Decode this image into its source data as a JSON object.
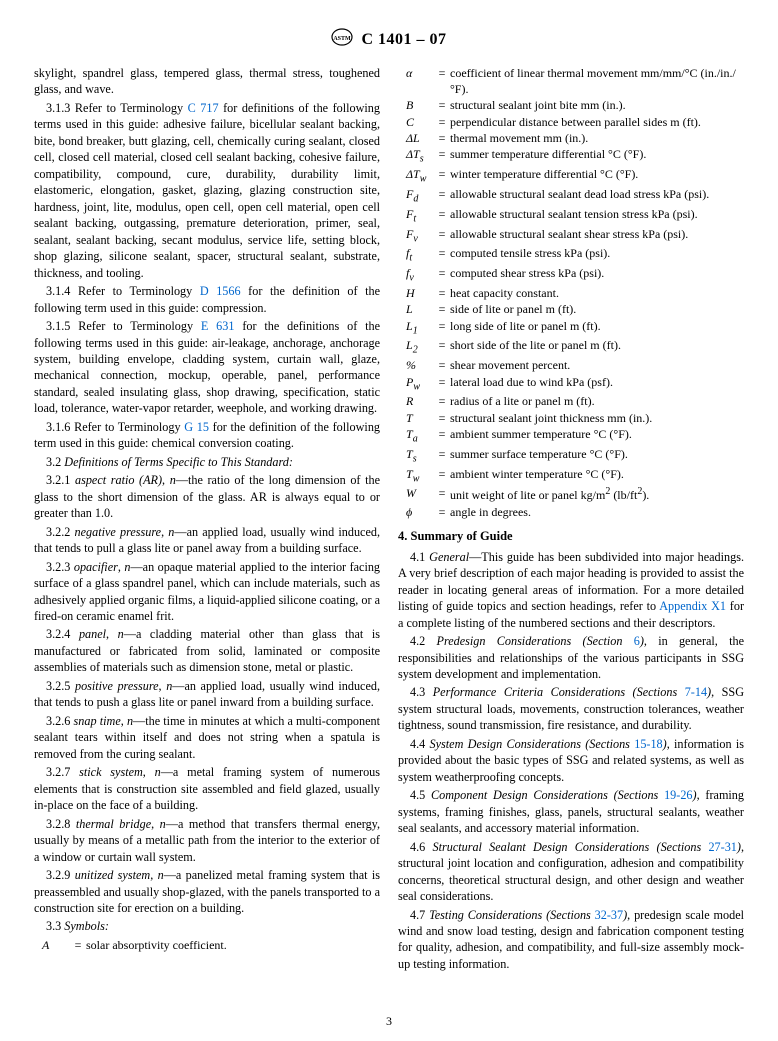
{
  "header": {
    "designation": "C 1401 – 07"
  },
  "intro_tail": "skylight, spandrel glass, tempered glass, thermal stress, toughened glass, and wave.",
  "refs": {
    "r313": {
      "num": "3.1.3",
      "link": "C 717",
      "pre": "Refer to Terminology ",
      "post": " for definitions of the following terms used in this guide: adhesive failure, bicellular sealant backing, bite, bond breaker, butt glazing, cell, chemically curing sealant, closed cell, closed cell material, closed cell sealant backing, cohesive failure, compatibility, compound, cure, durability, durability limit, elastomeric, elongation, gasket, glazing, glazing construction site, hardness, joint, lite, modulus, open cell, open cell material, open cell sealant backing, outgassing, premature deterioration, primer, seal, sealant, sealant backing, secant modulus, service life, setting block, shop glazing, silicone sealant, spacer, structural sealant, substrate, thickness, and tooling."
    },
    "r314": {
      "num": "3.1.4",
      "link": "D 1566",
      "pre": "Refer to Terminology ",
      "post": " for the definition of the following term used in this guide: compression."
    },
    "r315": {
      "num": "3.1.5",
      "link": "E 631",
      "pre": "Refer to Terminology ",
      "post": " for the definitions of the following terms used in this guide: air-leakage, anchorage, anchorage system, building envelope, cladding system, curtain wall, glaze, mechanical connection, mockup, operable, panel, performance standard, sealed insulating glass, shop drawing, specification, static load, tolerance, water-vapor retarder, weephole, and working drawing."
    },
    "r316": {
      "num": "3.1.6",
      "link": "G 15",
      "pre": "Refer to Terminology ",
      "post": " for the definition of the following term used in this guide: chemical conversion coating."
    }
  },
  "defs_head": {
    "num": "3.2",
    "title": "Definitions of Terms Specific to This Standard:"
  },
  "defs": [
    {
      "num": "3.2.1",
      "term": "aspect ratio (AR)",
      "pos": "n",
      "text": "—the ratio of the long dimension of the glass to the short dimension of the glass. AR is always equal to or greater than 1.0."
    },
    {
      "num": "3.2.2",
      "term": "negative pressure",
      "pos": "n",
      "text": "—an applied load, usually wind induced, that tends to pull a glass lite or panel away from a building surface."
    },
    {
      "num": "3.2.3",
      "term": "opacifier",
      "pos": "n",
      "text": "—an opaque material applied to the interior facing surface of a glass spandrel panel, which can include materials, such as adhesively applied organic films, a liquid-applied silicone coating, or a fired-on ceramic enamel frit."
    },
    {
      "num": "3.2.4",
      "term": "panel",
      "pos": "n",
      "text": "—a cladding material other than glass that is manufactured or fabricated from solid, laminated or composite assemblies of materials such as dimension stone, metal or plastic."
    },
    {
      "num": "3.2.5",
      "term": "positive pressure",
      "pos": "n",
      "text": "—an applied load, usually wind induced, that tends to push a glass lite or panel inward from a building surface."
    },
    {
      "num": "3.2.6",
      "term": "snap time",
      "pos": "n",
      "text": "—the time in minutes at which a multi-component sealant tears within itself and does not string when a spatula is removed from the curing sealant."
    },
    {
      "num": "3.2.7",
      "term": "stick system",
      "pos": "n",
      "text": "—a metal framing system of numerous elements that is construction site assembled and field glazed, usually in-place on the face of a building."
    },
    {
      "num": "3.2.8",
      "term": "thermal bridge",
      "pos": "n",
      "text": "—a method that transfers thermal energy, usually by means of a metallic path from the interior to the exterior of a window or curtain wall system."
    },
    {
      "num": "3.2.9",
      "term": "unitized system",
      "pos": "n",
      "text": "—a panelized metal framing system that is preassembled and usually shop-glazed, with the panels transported to a construction site for erection on a building."
    }
  ],
  "symbols_head": {
    "num": "3.3",
    "title": "Symbols:"
  },
  "symbols": [
    {
      "sym": "A",
      "def": "solar absorptivity coefficient."
    },
    {
      "sym": "α",
      "def": "coefficient of linear thermal movement mm/mm/°C (in./in./°F)."
    },
    {
      "sym": "B",
      "def": "structural sealant joint bite mm (in.)."
    },
    {
      "sym": "C",
      "def": "perpendicular distance between parallel sides m (ft)."
    },
    {
      "sym": "ΔL",
      "def": "thermal movement mm (in.)."
    },
    {
      "sym": "ΔT<sub>s</sub>",
      "def": "summer temperature differential °C (°F)."
    },
    {
      "sym": "ΔT<sub>w</sub>",
      "def": "winter temperature differential °C (°F)."
    },
    {
      "sym": "F<sub>d</sub>",
      "def": "allowable structural sealant dead load stress kPa (psi)."
    },
    {
      "sym": "F<sub>t</sub>",
      "def": "allowable structural sealant tension stress kPa (psi)."
    },
    {
      "sym": "F<sub>v</sub>",
      "def": "allowable structural sealant shear stress kPa (psi)."
    },
    {
      "sym": "f<sub>t</sub>",
      "def": "computed tensile stress kPa (psi)."
    },
    {
      "sym": "f<sub>v</sub>",
      "def": "computed shear stress kPa (psi)."
    },
    {
      "sym": "H",
      "def": "heat capacity constant."
    },
    {
      "sym": "L",
      "def": "side of lite or panel m (ft)."
    },
    {
      "sym": "L<sub>1</sub>",
      "def": "long side of lite or panel m (ft)."
    },
    {
      "sym": "L<sub>2</sub>",
      "def": "short side of the lite or panel m (ft)."
    },
    {
      "sym": "%",
      "def": "shear movement percent."
    },
    {
      "sym": "P<sub>w</sub>",
      "def": "lateral load due to wind kPa (psf)."
    },
    {
      "sym": "R",
      "def": "radius of a lite or panel m (ft)."
    },
    {
      "sym": "T",
      "def": "structural sealant joint thickness mm (in.)."
    },
    {
      "sym": "T<sub>a</sub>",
      "def": "ambient summer temperature °C (°F)."
    },
    {
      "sym": "T<sub>s</sub>",
      "def": "summer surface temperature °C (°F)."
    },
    {
      "sym": "T<sub>w</sub>",
      "def": "ambient winter temperature °C (°F)."
    },
    {
      "sym": "W",
      "def": "unit weight of lite or panel kg/m<sup>2</sup> (lb/ft<sup>2</sup>)."
    },
    {
      "sym": "ϕ",
      "def": "angle in degrees."
    }
  ],
  "section4": {
    "title": "4. Summary of Guide",
    "items": [
      {
        "num": "4.1",
        "term": "General",
        "link": "Appendix X1",
        "pre": "—This guide has been subdivided into major headings. A very brief description of each major heading is provided to assist the reader in locating general areas of information. For a more detailed listing of guide topics and section headings, refer to ",
        "post": " for a complete listing of the numbered sections and their descriptors."
      },
      {
        "num": "4.2",
        "term": "Predesign Considerations (Section ",
        "link": "6",
        "term2": ")",
        "text": ", in general, the responsibilities and relationships of the various participants in SSG system development and implementation."
      },
      {
        "num": "4.3",
        "term": "Performance Criteria Considerations (Sections ",
        "link": "7-14",
        "term2": ")",
        "text": ", SSG system structural loads, movements, construction tolerances, weather tightness, sound transmission, fire resistance, and durability."
      },
      {
        "num": "4.4",
        "term": "System Design Considerations (Sections ",
        "link": "15-18",
        "term2": ")",
        "text": ", information is provided about the basic types of SSG and related systems, as well as system weatherproofing concepts."
      },
      {
        "num": "4.5",
        "term": "Component Design Considerations (Sections ",
        "link": "19-26",
        "term2": ")",
        "text": ", framing systems, framing finishes, glass, panels, structural sealants, weather seal sealants, and accessory material information."
      },
      {
        "num": "4.6",
        "term": "Structural Sealant Design Considerations (Sections ",
        "link": "27-31",
        "term2": ")",
        "text": ", structural joint location and configuration, adhesion and compatibility concerns, theoretical structural design, and other design and weather seal considerations."
      },
      {
        "num": "4.7",
        "term": "Testing Considerations (Sections ",
        "link": "32-37",
        "term2": ")",
        "text": ", predesign scale model wind and snow load testing, design and fabrication component testing for quality, adhesion, and compatibility, and full-size assembly mock-up testing information."
      }
    ]
  },
  "page_number": "3"
}
